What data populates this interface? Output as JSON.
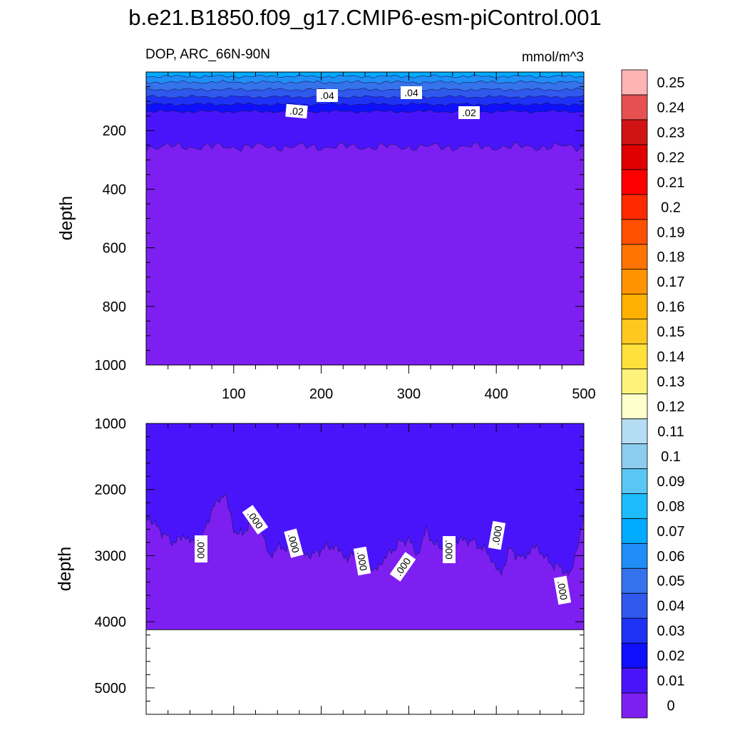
{
  "chart_data": {
    "type": "contour",
    "title": "b.e21.B1850.f09_g17.CMIP6-esm-piControl.001",
    "subtitle_left": "DOP, ARC_66N-90N",
    "units": "mmol/m^3",
    "colorbar": {
      "levels": [
        "0",
        "0.01",
        "0.02",
        "0.03",
        "0.04",
        "0.05",
        "0.06",
        "0.07",
        "0.08",
        "0.09",
        "0.1",
        "0.11",
        "0.12",
        "0.13",
        "0.14",
        "0.15",
        "0.16",
        "0.17",
        "0.18",
        "0.19",
        "0.2",
        "0.21",
        "0.22",
        "0.23",
        "0.24",
        "0.25"
      ],
      "colors": [
        "#7d1ff0",
        "#4a14fb",
        "#0f0ffc",
        "#1e32f5",
        "#2f58ed",
        "#3573ec",
        "#1f8ef7",
        "#00aaff",
        "#1ebcfa",
        "#5ac6f5",
        "#8ccdef",
        "#b4dcf2",
        "#ffffcc",
        "#fff27a",
        "#ffe03c",
        "#ffc81e",
        "#ffb000",
        "#ff9400",
        "#ff7400",
        "#ff5000",
        "#ff2a00",
        "#ff0000",
        "#e00000",
        "#d01414",
        "#e65050",
        "#ffb4b4"
      ]
    },
    "panels": [
      {
        "name": "upper",
        "ylabel": "depth",
        "ylim": [
          0,
          1000
        ],
        "xlim": [
          0,
          500
        ],
        "yticks": [
          "200",
          "400",
          "600",
          "800",
          "1000"
        ],
        "xticks": [
          "100",
          "200",
          "300",
          "400",
          "500"
        ],
        "contour_labels": [
          ".04",
          ".04",
          ".02",
          ".02"
        ],
        "layers": [
          {
            "value_range": "0.07-0.08",
            "bottom_depth": 15
          },
          {
            "value_range": "0.06-0.07",
            "bottom_depth": 35
          },
          {
            "value_range": "0.05-0.06",
            "bottom_depth": 60
          },
          {
            "value_range": "0.04-0.05",
            "bottom_depth": 85
          },
          {
            "value_range": "0.03-0.04",
            "bottom_depth": 110
          },
          {
            "value_range": "0.02-0.03",
            "bottom_depth": 135
          },
          {
            "value_range": "0.01-0.02",
            "bottom_depth": 255
          },
          {
            "value_range": "0-0.01",
            "bottom_depth": 1000
          }
        ]
      },
      {
        "name": "lower",
        "ylabel": "depth",
        "ylim": [
          1000,
          5400
        ],
        "xlim": [
          0,
          500
        ],
        "yticks": [
          "1000",
          "2000",
          "3000",
          "4000",
          "5000"
        ],
        "contour_labels": [
          ".000",
          ".000",
          ".000",
          ".000",
          ".000",
          ".000",
          ".000",
          ".000"
        ],
        "zero_contour_depth": {
          "x": [
            0,
            15,
            30,
            45,
            60,
            75,
            90,
            100,
            110,
            125,
            140,
            155,
            160,
            175,
            190,
            200,
            215,
            230,
            245,
            260,
            275,
            290,
            300,
            310,
            320,
            330,
            345,
            360,
            375,
            390,
            405,
            415,
            430,
            445,
            460,
            475,
            485,
            495,
            500
          ],
          "depth": [
            2400,
            2600,
            2800,
            2700,
            2900,
            2300,
            2050,
            2600,
            2700,
            2300,
            3000,
            2850,
            2900,
            2950,
            3000,
            2900,
            2850,
            3050,
            2900,
            3250,
            3000,
            2800,
            2750,
            3000,
            2600,
            2850,
            2900,
            2750,
            2800,
            2950,
            3300,
            2900,
            3050,
            2850,
            3100,
            3200,
            3300,
            2700,
            2400
          ]
        },
        "ocean_floor_depth": 4120
      }
    ]
  }
}
